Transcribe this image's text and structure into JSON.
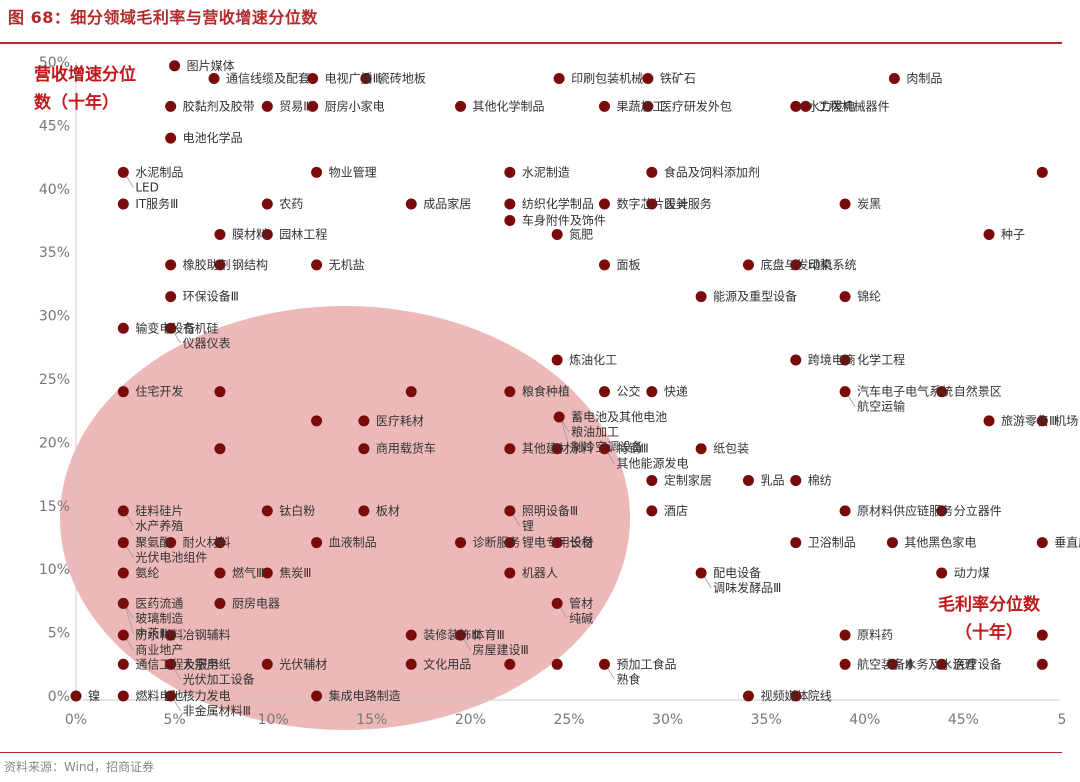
{
  "title": "图 68：细分领域毛利率与营收增速分位数",
  "source": "资料来源：Wind，招商证券",
  "colors": {
    "title": "#b22a2a",
    "point": "#7a0b0b",
    "ellipse": "#e08c8c",
    "axis_title": "#c0181b"
  },
  "chart_data": {
    "type": "scatter",
    "title": "细分领域毛利率与营收增速分位数",
    "xlabel": "毛利率分位数（十年）",
    "ylabel": "营收增速分位数（十年）",
    "xlim": [
      0,
      0.5
    ],
    "ylim": [
      0,
      0.5
    ],
    "x_ticks": [
      "0%",
      "5%",
      "10%",
      "15%",
      "20%",
      "25%",
      "30%",
      "35%",
      "40%",
      "45%",
      "5"
    ],
    "y_ticks": [
      "0%",
      "5%",
      "10%",
      "15%",
      "20%",
      "25%",
      "30%",
      "35%",
      "40%",
      "45%",
      "50%"
    ],
    "highlight_region": "low margin & low revenue-growth quantile zone (ellipse)",
    "points": [
      {
        "x": 0.05,
        "y": 0.497,
        "label": "图片媒体"
      },
      {
        "x": 0.07,
        "y": 0.487,
        "label": "通信线缆及配套"
      },
      {
        "x": 0.12,
        "y": 0.487,
        "label": "电视广播Ⅲ"
      },
      {
        "x": 0.147,
        "y": 0.487,
        "label": "瓷砖地板"
      },
      {
        "x": 0.245,
        "y": 0.487,
        "label": "印刷包装机械"
      },
      {
        "x": 0.29,
        "y": 0.487,
        "label": "铁矿石"
      },
      {
        "x": 0.415,
        "y": 0.487,
        "label": "肉制品"
      },
      {
        "x": 0.048,
        "y": 0.465,
        "label": "胶黏剂及胶带"
      },
      {
        "x": 0.097,
        "y": 0.465,
        "label": "贸易Ⅲ"
      },
      {
        "x": 0.12,
        "y": 0.465,
        "label": "厨房小家电"
      },
      {
        "x": 0.195,
        "y": 0.465,
        "label": "其他化学制品"
      },
      {
        "x": 0.268,
        "y": 0.465,
        "label": "果蔬加工"
      },
      {
        "x": 0.29,
        "y": 0.465,
        "label": "医疗研发外包"
      },
      {
        "x": 0.365,
        "y": 0.465,
        "label": "水力发电"
      },
      {
        "x": 0.37,
        "y": 0.465,
        "label": "工程机械器件"
      },
      {
        "x": 0.048,
        "y": 0.44,
        "label": "电池化学品"
      },
      {
        "x": 0.024,
        "y": 0.413,
        "label": "水泥制品"
      },
      {
        "x": 0.024,
        "y": 0.413,
        "label": "LED"
      },
      {
        "x": 0.122,
        "y": 0.413,
        "label": "物业管理"
      },
      {
        "x": 0.22,
        "y": 0.413,
        "label": "水泥制造"
      },
      {
        "x": 0.292,
        "y": 0.413,
        "label": "食品及饲料添加剂"
      },
      {
        "x": 0.49,
        "y": 0.413,
        "label": ""
      },
      {
        "x": 0.024,
        "y": 0.388,
        "label": "IT服务Ⅲ"
      },
      {
        "x": 0.097,
        "y": 0.388,
        "label": "农药"
      },
      {
        "x": 0.17,
        "y": 0.388,
        "label": "成品家居"
      },
      {
        "x": 0.22,
        "y": 0.388,
        "label": "纺织化学制品"
      },
      {
        "x": 0.268,
        "y": 0.388,
        "label": "数字芯片设计"
      },
      {
        "x": 0.292,
        "y": 0.388,
        "label": "医美服务"
      },
      {
        "x": 0.39,
        "y": 0.388,
        "label": "炭黑"
      },
      {
        "x": 0.22,
        "y": 0.375,
        "label": "车身附件及饰件"
      },
      {
        "x": 0.073,
        "y": 0.364,
        "label": "膜材料"
      },
      {
        "x": 0.097,
        "y": 0.364,
        "label": "园林工程"
      },
      {
        "x": 0.244,
        "y": 0.364,
        "label": "氮肥"
      },
      {
        "x": 0.463,
        "y": 0.364,
        "label": "种子"
      },
      {
        "x": 0.048,
        "y": 0.34,
        "label": "橡胶助剂"
      },
      {
        "x": 0.073,
        "y": 0.34,
        "label": "钢结构"
      },
      {
        "x": 0.122,
        "y": 0.34,
        "label": "无机盐"
      },
      {
        "x": 0.268,
        "y": 0.34,
        "label": "面板"
      },
      {
        "x": 0.341,
        "y": 0.34,
        "label": "底盘与发动机系统"
      },
      {
        "x": 0.365,
        "y": 0.34,
        "label": "印染"
      },
      {
        "x": 0.048,
        "y": 0.315,
        "label": "环保设备Ⅲ"
      },
      {
        "x": 0.317,
        "y": 0.315,
        "label": "能源及重型设备"
      },
      {
        "x": 0.39,
        "y": 0.315,
        "label": "锦纶"
      },
      {
        "x": 0.024,
        "y": 0.29,
        "label": "输变电设备"
      },
      {
        "x": 0.048,
        "y": 0.29,
        "label": "有机硅"
      },
      {
        "x": 0.048,
        "y": 0.29,
        "label": "仪器仪表"
      },
      {
        "x": 0.244,
        "y": 0.265,
        "label": "炼油化工"
      },
      {
        "x": 0.365,
        "y": 0.265,
        "label": "跨境电商"
      },
      {
        "x": 0.39,
        "y": 0.265,
        "label": "化学工程"
      },
      {
        "x": 0.024,
        "y": 0.24,
        "label": "住宅开发"
      },
      {
        "x": 0.073,
        "y": 0.24,
        "label": ""
      },
      {
        "x": 0.17,
        "y": 0.24,
        "label": ""
      },
      {
        "x": 0.22,
        "y": 0.24,
        "label": "粮食种植"
      },
      {
        "x": 0.268,
        "y": 0.24,
        "label": "公交"
      },
      {
        "x": 0.292,
        "y": 0.24,
        "label": "快递"
      },
      {
        "x": 0.39,
        "y": 0.24,
        "label": "汽车电子电气系统"
      },
      {
        "x": 0.39,
        "y": 0.24,
        "label": "航空运输"
      },
      {
        "x": 0.439,
        "y": 0.24,
        "label": "自然景区"
      },
      {
        "x": 0.245,
        "y": 0.22,
        "label": "蓄电池及其他电池"
      },
      {
        "x": 0.245,
        "y": 0.22,
        "label": "粮油加工"
      },
      {
        "x": 0.245,
        "y": 0.22,
        "label": "制冷空调设备"
      },
      {
        "x": 0.463,
        "y": 0.217,
        "label": "旅游零售Ⅲ"
      },
      {
        "x": 0.49,
        "y": 0.217,
        "label": "机场"
      },
      {
        "x": 0.122,
        "y": 0.217,
        "label": ""
      },
      {
        "x": 0.146,
        "y": 0.217,
        "label": "医疗耗材"
      },
      {
        "x": 0.073,
        "y": 0.195,
        "label": ""
      },
      {
        "x": 0.146,
        "y": 0.195,
        "label": "商用载货车"
      },
      {
        "x": 0.22,
        "y": 0.195,
        "label": "其他建材"
      },
      {
        "x": 0.244,
        "y": 0.195,
        "label": "涂料"
      },
      {
        "x": 0.268,
        "y": 0.195,
        "label": "特钢Ⅲ"
      },
      {
        "x": 0.317,
        "y": 0.195,
        "label": "纸包装"
      },
      {
        "x": 0.268,
        "y": 0.195,
        "label": "其他能源发电"
      },
      {
        "x": 0.292,
        "y": 0.17,
        "label": "定制家居"
      },
      {
        "x": 0.341,
        "y": 0.17,
        "label": "乳品"
      },
      {
        "x": 0.365,
        "y": 0.17,
        "label": "棉纺"
      },
      {
        "x": 0.22,
        "y": 0.146,
        "label": "照明设备Ⅲ"
      },
      {
        "x": 0.39,
        "y": 0.146,
        "label": "原材料供应链服务"
      },
      {
        "x": 0.024,
        "y": 0.146,
        "label": "硅料硅片"
      },
      {
        "x": 0.024,
        "y": 0.146,
        "label": "水产养殖"
      },
      {
        "x": 0.097,
        "y": 0.146,
        "label": "钛白粉"
      },
      {
        "x": 0.146,
        "y": 0.146,
        "label": "板材"
      },
      {
        "x": 0.22,
        "y": 0.146,
        "label": "锂"
      },
      {
        "x": 0.292,
        "y": 0.146,
        "label": "酒店"
      },
      {
        "x": 0.439,
        "y": 0.146,
        "label": "分立器件"
      },
      {
        "x": 0.024,
        "y": 0.121,
        "label": "聚氨酯"
      },
      {
        "x": 0.048,
        "y": 0.121,
        "label": "耐火材料"
      },
      {
        "x": 0.073,
        "y": 0.121,
        "label": ""
      },
      {
        "x": 0.122,
        "y": 0.121,
        "label": "血液制品"
      },
      {
        "x": 0.195,
        "y": 0.121,
        "label": "诊断服务"
      },
      {
        "x": 0.22,
        "y": 0.121,
        "label": "锂电专用设备"
      },
      {
        "x": 0.244,
        "y": 0.121,
        "label": "长材"
      },
      {
        "x": 0.365,
        "y": 0.121,
        "label": "卫浴制品"
      },
      {
        "x": 0.414,
        "y": 0.121,
        "label": "其他黑色家电"
      },
      {
        "x": 0.49,
        "y": 0.121,
        "label": "垂直应用"
      },
      {
        "x": 0.024,
        "y": 0.121,
        "label": "光伏电池组件"
      },
      {
        "x": 0.024,
        "y": 0.097,
        "label": "氨纶"
      },
      {
        "x": 0.073,
        "y": 0.097,
        "label": "燃气Ⅲ"
      },
      {
        "x": 0.097,
        "y": 0.097,
        "label": "焦炭Ⅲ"
      },
      {
        "x": 0.22,
        "y": 0.097,
        "label": "机器人"
      },
      {
        "x": 0.317,
        "y": 0.097,
        "label": "配电设备"
      },
      {
        "x": 0.317,
        "y": 0.097,
        "label": "调味发酵品Ⅲ"
      },
      {
        "x": 0.439,
        "y": 0.097,
        "label": "动力煤"
      },
      {
        "x": 0.024,
        "y": 0.073,
        "label": "医药流通"
      },
      {
        "x": 0.024,
        "y": 0.073,
        "label": "玻璃制造"
      },
      {
        "x": 0.073,
        "y": 0.073,
        "label": "厨房电器"
      },
      {
        "x": 0.024,
        "y": 0.073,
        "label": "中药Ⅲ"
      },
      {
        "x": 0.244,
        "y": 0.073,
        "label": "管材"
      },
      {
        "x": 0.244,
        "y": 0.073,
        "label": "纯碱"
      },
      {
        "x": 0.024,
        "y": 0.048,
        "label": "防水材料"
      },
      {
        "x": 0.024,
        "y": 0.048,
        "label": "商业地产"
      },
      {
        "x": 0.048,
        "y": 0.048,
        "label": "冶钢辅料"
      },
      {
        "x": 0.17,
        "y": 0.048,
        "label": "装修装饰Ⅲ"
      },
      {
        "x": 0.195,
        "y": 0.048,
        "label": "体育Ⅲ"
      },
      {
        "x": 0.195,
        "y": 0.048,
        "label": "房屋建设Ⅲ"
      },
      {
        "x": 0.39,
        "y": 0.048,
        "label": "原料药"
      },
      {
        "x": 0.49,
        "y": 0.048,
        "label": ""
      },
      {
        "x": 0.048,
        "y": 0.025,
        "label": "大宗用纸"
      },
      {
        "x": 0.048,
        "y": 0.025,
        "label": "光伏加工设备"
      },
      {
        "x": 0.024,
        "y": 0.025,
        "label": "通信工程及服务"
      },
      {
        "x": 0.097,
        "y": 0.025,
        "label": "光伏辅材"
      },
      {
        "x": 0.17,
        "y": 0.025,
        "label": "文化用品"
      },
      {
        "x": 0.22,
        "y": 0.025,
        "label": ""
      },
      {
        "x": 0.244,
        "y": 0.025,
        "label": ""
      },
      {
        "x": 0.268,
        "y": 0.025,
        "label": "预加工食品"
      },
      {
        "x": 0.268,
        "y": 0.025,
        "label": "熟食"
      },
      {
        "x": 0.39,
        "y": 0.025,
        "label": "航空装备Ⅲ"
      },
      {
        "x": 0.414,
        "y": 0.025,
        "label": "水务及水治理"
      },
      {
        "x": 0.439,
        "y": 0.025,
        "label": "医疗设备"
      },
      {
        "x": 0.49,
        "y": 0.025,
        "label": ""
      },
      {
        "x": 0.0,
        "y": 0.0,
        "label": "镍"
      },
      {
        "x": 0.024,
        "y": 0.0,
        "label": "燃料电池"
      },
      {
        "x": 0.048,
        "y": 0.0,
        "label": "核力发电"
      },
      {
        "x": 0.048,
        "y": 0.0,
        "label": "非金属材料Ⅲ"
      },
      {
        "x": 0.122,
        "y": 0.0,
        "label": "集成电路制造"
      },
      {
        "x": 0.341,
        "y": 0.0,
        "label": "视频媒体"
      },
      {
        "x": 0.365,
        "y": 0.0,
        "label": "院线"
      }
    ]
  }
}
